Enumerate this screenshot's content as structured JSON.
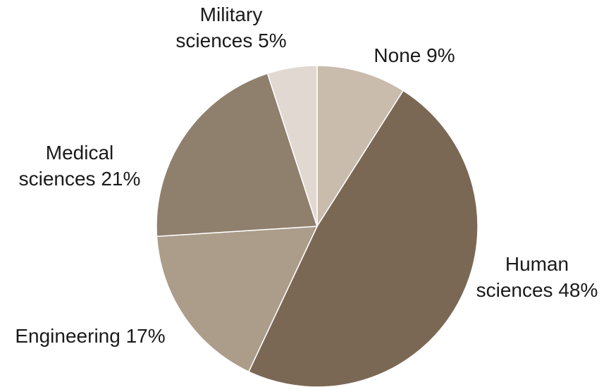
{
  "chart_data": {
    "type": "pie",
    "title": "",
    "start_angle_deg": 0,
    "direction": "clockwise",
    "slices": [
      {
        "label_lines": [
          "None 9%"
        ],
        "value": 9,
        "color": "#c9bcad"
      },
      {
        "label_lines": [
          "Human",
          "sciences 48%"
        ],
        "value": 48,
        "color": "#7b6854"
      },
      {
        "label_lines": [
          "Engineering 17%"
        ],
        "value": 17,
        "color": "#ab9d8a"
      },
      {
        "label_lines": [
          "Medical",
          "sciences 21%"
        ],
        "value": 21,
        "color": "#8f7f6d"
      },
      {
        "label_lines": [
          "Military",
          "sciences 5%"
        ],
        "value": 5,
        "color": "#e1d9d1"
      }
    ]
  }
}
